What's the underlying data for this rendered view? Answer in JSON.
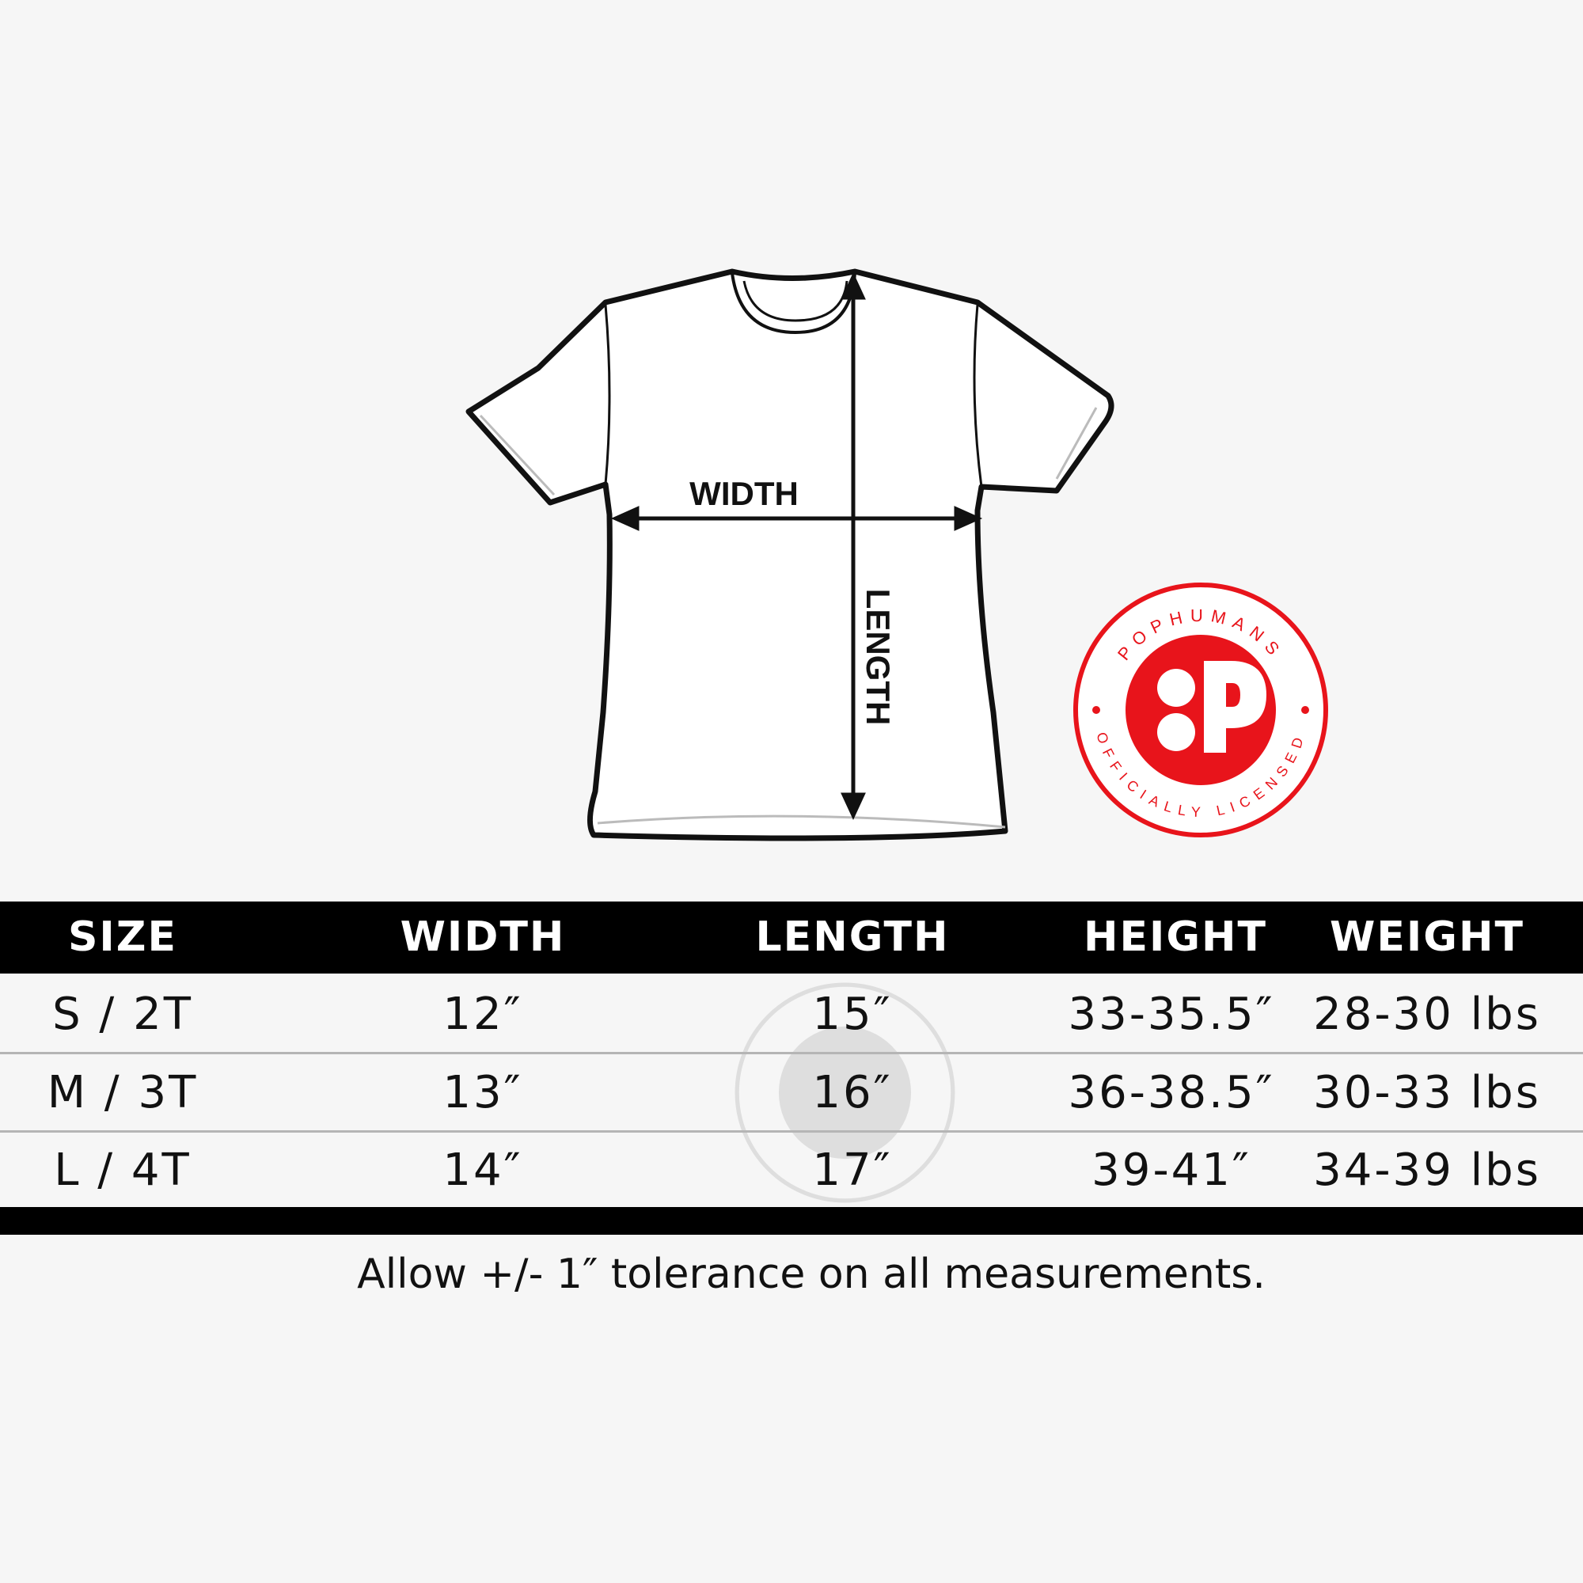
{
  "diagram": {
    "width_label": "WIDTH",
    "length_label": "LENGTH"
  },
  "badge": {
    "brand": "POPHUMANS",
    "tagline": "OFFICIALLY LICENSED",
    "color": "#e8141b"
  },
  "table": {
    "headers": [
      "SIZE",
      "WIDTH",
      "LENGTH",
      "HEIGHT",
      "WEIGHT"
    ],
    "rows": [
      [
        "S / 2T",
        "12″",
        "15″",
        "33-35.5″",
        "28-30 lbs"
      ],
      [
        "M / 3T",
        "13″",
        "16″",
        "36-38.5″",
        "30-33 lbs"
      ],
      [
        "L / 4T",
        "14″",
        "17″",
        "39-41″",
        "34-39 lbs"
      ]
    ]
  },
  "footnote": "Allow +/- 1″ tolerance on all measurements."
}
